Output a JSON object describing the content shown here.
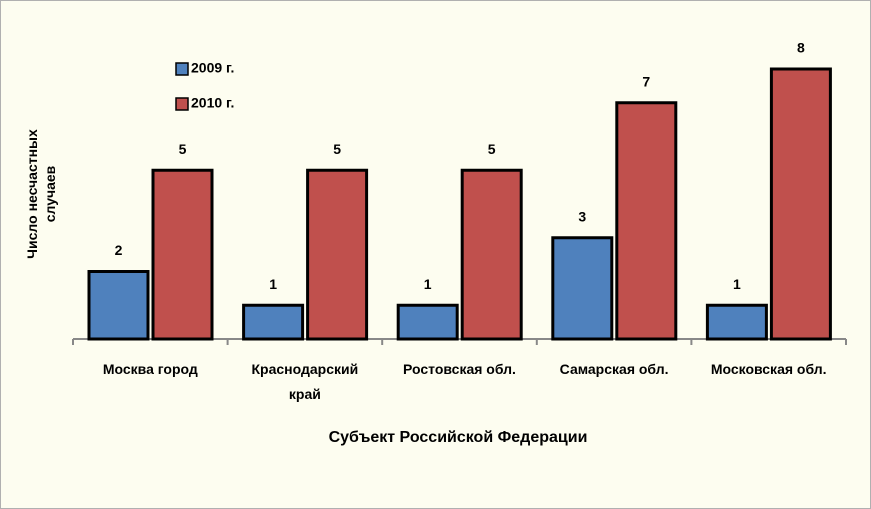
{
  "chart_data": {
    "type": "bar",
    "x_label": "Субъект Российской Федерации",
    "y_label": "Число несчастных\nслучаев",
    "categories": [
      "Москва город",
      "Краснодарский\nкрай",
      "Ростовская обл.",
      "Самарская обл.",
      "Московская обл."
    ],
    "series": [
      {
        "name": "2009 г.",
        "color": "#4f81bd",
        "values": [
          2,
          1,
          1,
          3,
          1
        ]
      },
      {
        "name": "2010 г.",
        "color": "#c0504d",
        "values": [
          5,
          5,
          5,
          7,
          8
        ]
      }
    ],
    "ylim": [
      0,
      8
    ],
    "legend": "top-left"
  }
}
